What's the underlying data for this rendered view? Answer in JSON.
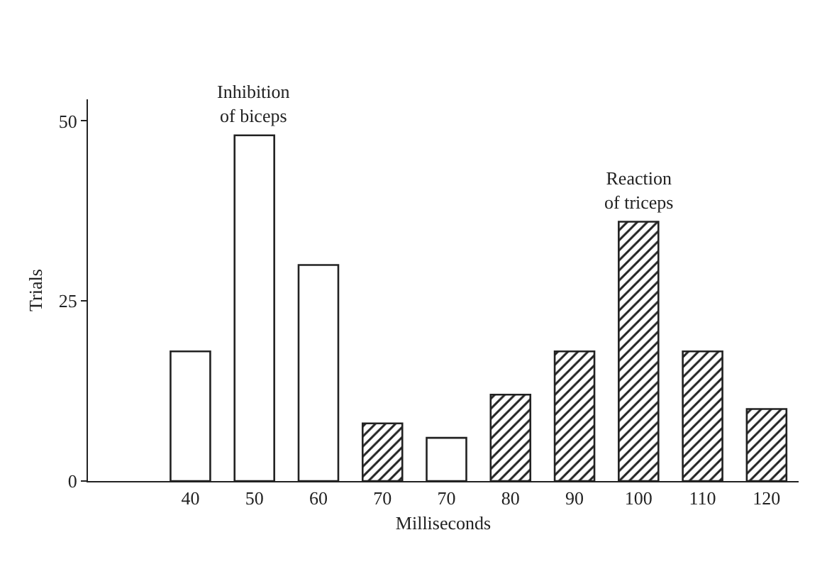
{
  "chart_data": {
    "type": "bar",
    "xlabel": "Milliseconds",
    "ylabel": "Trials",
    "categories": [
      "40",
      "50",
      "60",
      "70",
      "70",
      "80",
      "90",
      "100",
      "110",
      "120"
    ],
    "series": [
      {
        "name": "Inhibition of biceps",
        "color": "#ffffff",
        "values": [
          18,
          48,
          30,
          null,
          6,
          null,
          null,
          null,
          null,
          null
        ]
      },
      {
        "name": "Reaction of triceps",
        "color": "#222222",
        "values": [
          null,
          null,
          null,
          8,
          null,
          12,
          18,
          36,
          18,
          10
        ]
      }
    ],
    "ylim": [
      0,
      53
    ],
    "yticks": [
      0,
      25,
      50
    ],
    "grid": false,
    "legend": false
  }
}
